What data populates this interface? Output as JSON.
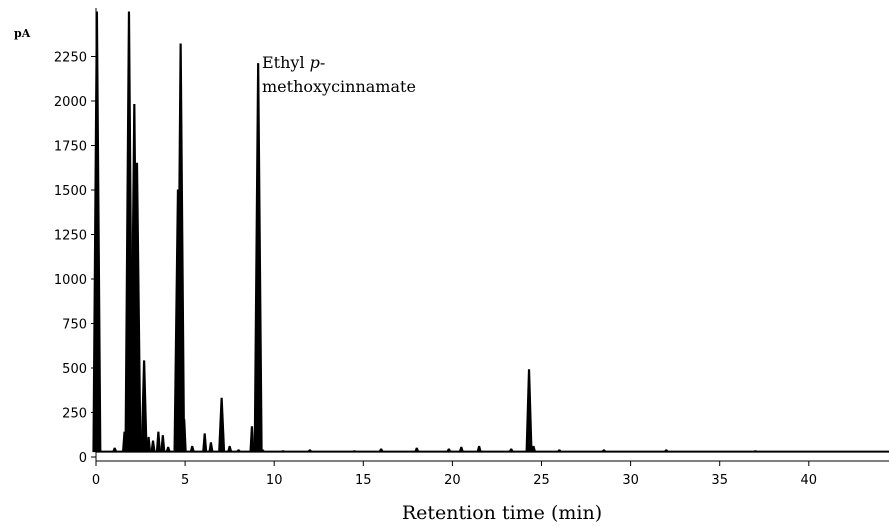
{
  "chart_data": {
    "type": "line",
    "title": "",
    "xlabel": "Retention time (min)",
    "ylabel": "pA",
    "xlim": [
      0,
      44.5
    ],
    "ylim": [
      0,
      2500
    ],
    "x_ticks": [
      0,
      5,
      10,
      15,
      20,
      25,
      30,
      35,
      40
    ],
    "y_ticks": [
      0,
      250,
      500,
      750,
      1000,
      1250,
      1500,
      1750,
      2000,
      2250
    ],
    "grid": false,
    "annotations": [
      {
        "text_plain": "Ethyl ",
        "text_italic": "p",
        "text_suffix": "-",
        "line2": "methoxycinnamate",
        "x": 9.1,
        "y": 2160
      }
    ],
    "peaks": [
      {
        "rt": 0.05,
        "height": 2500
      },
      {
        "rt": 1.05,
        "height": 50
      },
      {
        "rt": 1.6,
        "height": 140
      },
      {
        "rt": 1.85,
        "height": 2500
      },
      {
        "rt": 2.15,
        "height": 1980
      },
      {
        "rt": 2.3,
        "height": 1650
      },
      {
        "rt": 2.55,
        "height": 40
      },
      {
        "rt": 2.7,
        "height": 540
      },
      {
        "rt": 2.95,
        "height": 110
      },
      {
        "rt": 3.2,
        "height": 90
      },
      {
        "rt": 3.5,
        "height": 140
      },
      {
        "rt": 3.75,
        "height": 120
      },
      {
        "rt": 4.05,
        "height": 55
      },
      {
        "rt": 4.6,
        "height": 1500
      },
      {
        "rt": 4.75,
        "height": 2320
      },
      {
        "rt": 4.95,
        "height": 210
      },
      {
        "rt": 5.4,
        "height": 60
      },
      {
        "rt": 6.1,
        "height": 130
      },
      {
        "rt": 6.45,
        "height": 80
      },
      {
        "rt": 7.05,
        "height": 330
      },
      {
        "rt": 7.5,
        "height": 60
      },
      {
        "rt": 8.0,
        "height": 40
      },
      {
        "rt": 8.75,
        "height": 170
      },
      {
        "rt": 9.1,
        "height": 2210
      },
      {
        "rt": 9.35,
        "height": 40
      },
      {
        "rt": 10.5,
        "height": 35
      },
      {
        "rt": 12.0,
        "height": 40
      },
      {
        "rt": 14.5,
        "height": 35
      },
      {
        "rt": 16.0,
        "height": 45
      },
      {
        "rt": 18.0,
        "height": 50
      },
      {
        "rt": 19.8,
        "height": 45
      },
      {
        "rt": 20.5,
        "height": 55
      },
      {
        "rt": 21.5,
        "height": 60
      },
      {
        "rt": 23.3,
        "height": 45
      },
      {
        "rt": 24.3,
        "height": 490
      },
      {
        "rt": 24.55,
        "height": 60
      },
      {
        "rt": 26.0,
        "height": 40
      },
      {
        "rt": 28.5,
        "height": 40
      },
      {
        "rt": 32.0,
        "height": 40
      },
      {
        "rt": 37.0,
        "height": 35
      }
    ],
    "baseline": 30
  }
}
